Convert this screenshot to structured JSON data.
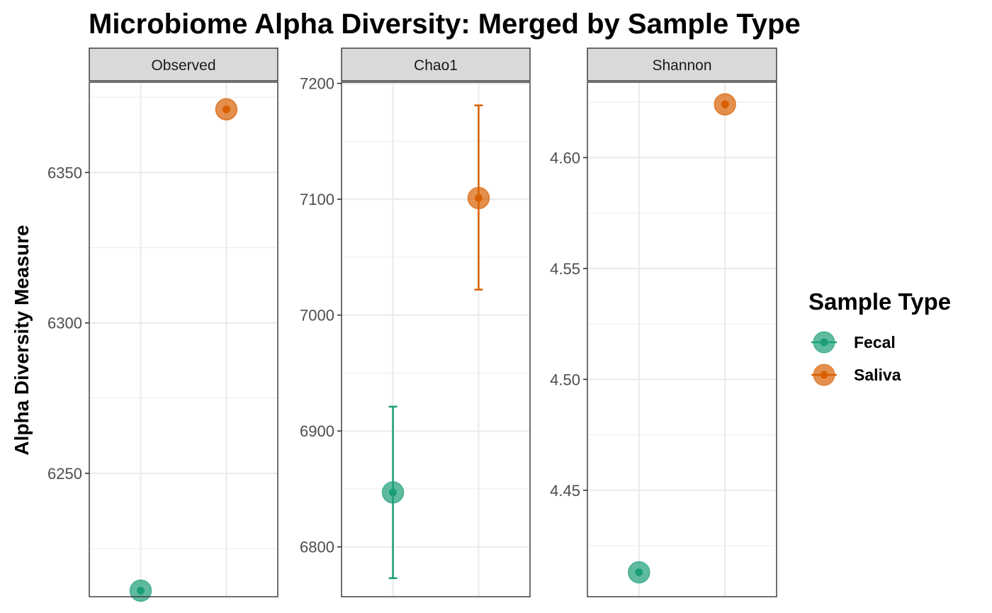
{
  "chart_data": {
    "type": "scatter",
    "title": "Microbiome Alpha Diversity: Merged by Sample Type",
    "ylabel": "Alpha Diversity Measure",
    "xlabel": "",
    "grid": true,
    "legend": {
      "title": "Sample Type",
      "position": "right",
      "entries": [
        {
          "name": "Fecal",
          "color": "#1B9E77"
        },
        {
          "name": "Saliva",
          "color": "#D95F02"
        }
      ]
    },
    "categories": [
      "Fecal",
      "Saliva"
    ],
    "panels": [
      {
        "name": "Observed",
        "ylim": [
          6209,
          6380
        ],
        "yticks": [
          "6250",
          "6300",
          "6350"
        ],
        "series": [
          {
            "name": "Fecal",
            "value": 6211
          },
          {
            "name": "Saliva",
            "value": 6371
          }
        ]
      },
      {
        "name": "Chao1",
        "ylim": [
          6757,
          7201
        ],
        "yticks": [
          "6800",
          "6900",
          "7000",
          "7100",
          "7200"
        ],
        "series": [
          {
            "name": "Fecal",
            "value": 6847,
            "lower": 6773,
            "upper": 6921
          },
          {
            "name": "Saliva",
            "value": 7101,
            "lower": 7022,
            "upper": 7181
          }
        ]
      },
      {
        "name": "Shannon",
        "ylim": [
          4.402,
          4.634
        ],
        "yticks": [
          "4.45",
          "4.50",
          "4.55",
          "4.60"
        ],
        "series": [
          {
            "name": "Fecal",
            "value": 4.413
          },
          {
            "name": "Saliva",
            "value": 4.624
          }
        ]
      }
    ]
  }
}
